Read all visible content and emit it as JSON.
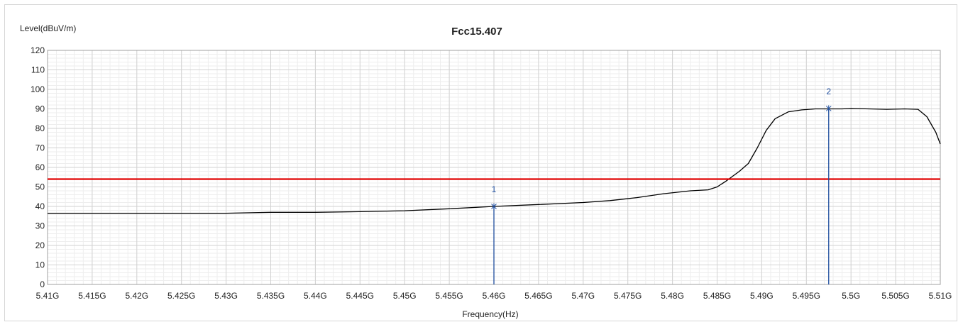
{
  "chart_data": {
    "type": "line",
    "title": "Fcc15.407",
    "ylabel": "Level(dBuV/m)",
    "xlabel": "Frequency(Hz)",
    "xlim": [
      5.41,
      5.51
    ],
    "ylim": [
      0,
      120
    ],
    "grid": true,
    "y_ticks": [
      0,
      10,
      20,
      30,
      40,
      50,
      60,
      70,
      80,
      90,
      100,
      110,
      120
    ],
    "x_ticks": [
      {
        "value": 5.41,
        "label": "5.41G"
      },
      {
        "value": 5.415,
        "label": "5.415G"
      },
      {
        "value": 5.42,
        "label": "5.42G"
      },
      {
        "value": 5.425,
        "label": "5.425G"
      },
      {
        "value": 5.43,
        "label": "5.43G"
      },
      {
        "value": 5.435,
        "label": "5.435G"
      },
      {
        "value": 5.44,
        "label": "5.44G"
      },
      {
        "value": 5.445,
        "label": "5.445G"
      },
      {
        "value": 5.45,
        "label": "5.45G"
      },
      {
        "value": 5.455,
        "label": "5.455G"
      },
      {
        "value": 5.46,
        "label": "5.46G"
      },
      {
        "value": 5.465,
        "label": "5.465G"
      },
      {
        "value": 5.47,
        "label": "5.47G"
      },
      {
        "value": 5.475,
        "label": "5.475G"
      },
      {
        "value": 5.48,
        "label": "5.48G"
      },
      {
        "value": 5.485,
        "label": "5.485G"
      },
      {
        "value": 5.49,
        "label": "5.49G"
      },
      {
        "value": 5.495,
        "label": "5.495G"
      },
      {
        "value": 5.5,
        "label": "5.5G"
      },
      {
        "value": 5.505,
        "label": "5.505G"
      },
      {
        "value": 5.51,
        "label": "5.51G"
      }
    ],
    "series": [
      {
        "color": "#000000",
        "x": [
          5.41,
          5.415,
          5.42,
          5.425,
          5.43,
          5.435,
          5.44,
          5.445,
          5.45,
          5.455,
          5.46,
          5.465,
          5.47,
          5.473,
          5.476,
          5.479,
          5.482,
          5.484,
          5.485,
          5.486,
          5.4875,
          5.4885,
          5.4895,
          5.4905,
          5.4915,
          5.493,
          5.4945,
          5.496,
          5.4975,
          5.499,
          5.5,
          5.502,
          5.504,
          5.506,
          5.5075,
          5.5085,
          5.5095,
          5.51
        ],
        "y": [
          36.5,
          36.5,
          36.5,
          36.5,
          36.5,
          37,
          37,
          37.3,
          37.8,
          38.8,
          40,
          41,
          42,
          43,
          44.5,
          46.5,
          48,
          48.5,
          50,
          53,
          58,
          62,
          70,
          79,
          85,
          88.5,
          89.5,
          90,
          90,
          90,
          90.2,
          90,
          89.8,
          90,
          89.8,
          86,
          78,
          72
        ]
      },
      {
        "color": "#e00000",
        "x": [
          5.41,
          5.51
        ],
        "y": [
          54,
          54
        ]
      }
    ],
    "markers": [
      {
        "label": "1",
        "x": 5.46,
        "y": 40,
        "color": "#1f4e9e"
      },
      {
        "label": "2",
        "x": 5.4975,
        "y": 90.2,
        "color": "#1f4e9e"
      }
    ]
  }
}
